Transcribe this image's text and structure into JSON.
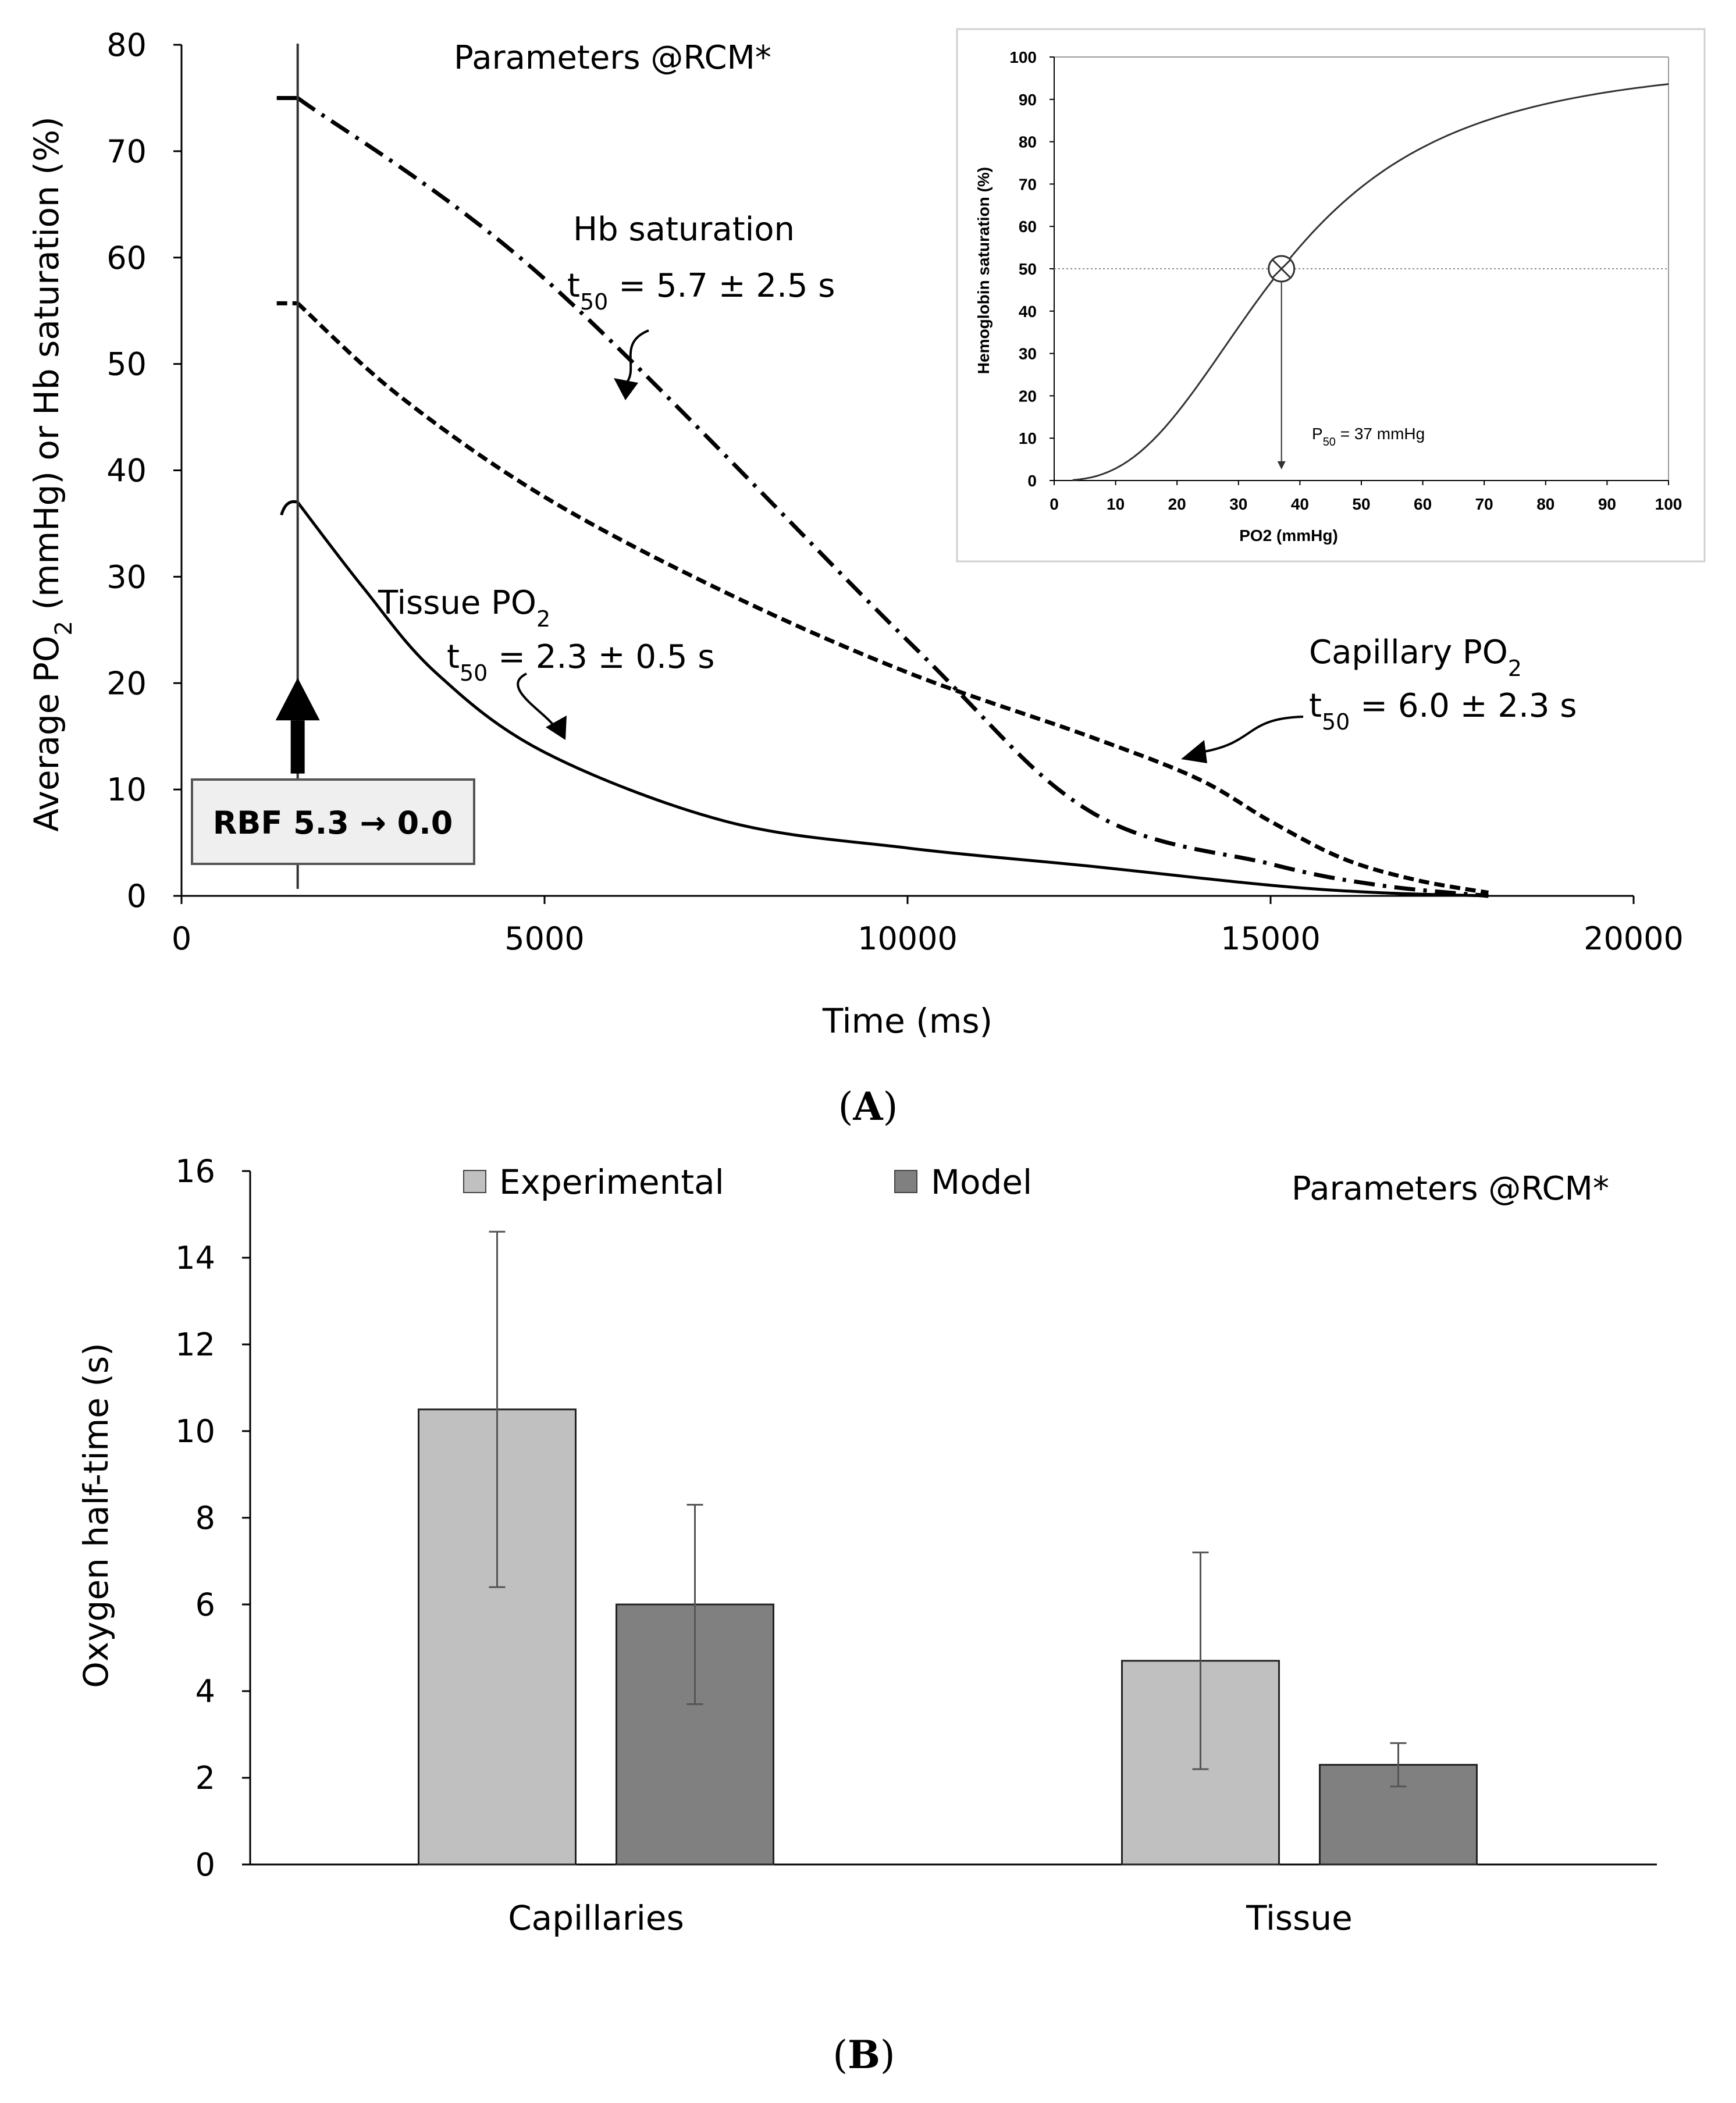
{
  "chart_data": [
    {
      "type": "line",
      "panel_label": "A",
      "annotation_top": "Parameters @RCM*",
      "xlabel": "Time (ms)",
      "ylabel_parts": [
        "Average PO",
        "2",
        " (mmHg)  or  Hb saturation (%)"
      ],
      "xlim": [
        0,
        20000
      ],
      "ylim": [
        0,
        80
      ],
      "xticks": [
        0,
        5000,
        10000,
        15000,
        20000
      ],
      "yticks": [
        0,
        10,
        20,
        30,
        40,
        50,
        60,
        70,
        80
      ],
      "event_time": 1600,
      "event_box": "RBF 5.3 → 0.0",
      "series": [
        {
          "name": "Hb saturation",
          "style": "dash-dot",
          "t50_label": [
            "t",
            "50",
            " = 5.7 ± 2.5 s"
          ],
          "points": [
            [
              1600,
              75
            ],
            [
              5000,
              58
            ],
            [
              10000,
              24
            ],
            [
              12500,
              8
            ],
            [
              15000,
              3
            ],
            [
              16500,
              1
            ],
            [
              18000,
              0
            ]
          ]
        },
        {
          "name": "Capillary  PO",
          "name_sub": "2",
          "style": "dashed",
          "t50_label": [
            "t",
            "50",
            " = 6.0 ± 2.3 s"
          ],
          "points": [
            [
              1600,
              55.7
            ],
            [
              3000,
              47
            ],
            [
              5000,
              37.5
            ],
            [
              7500,
              28.5
            ],
            [
              10000,
              21
            ],
            [
              12500,
              15
            ],
            [
              14000,
              11
            ],
            [
              15000,
              7
            ],
            [
              16000,
              3.5
            ],
            [
              17000,
              1.5
            ],
            [
              18000,
              0.3
            ]
          ]
        },
        {
          "name": "Tissue PO",
          "name_sub": "2",
          "style": "solid",
          "t50_label": [
            "t",
            "50",
            " = 2.3 ± 0.5 s"
          ],
          "points": [
            [
              1600,
              37
            ],
            [
              2500,
              29
            ],
            [
              3500,
              21
            ],
            [
              5000,
              13.5
            ],
            [
              7500,
              7
            ],
            [
              10000,
              4.5
            ],
            [
              12500,
              2.8
            ],
            [
              15000,
              1
            ],
            [
              16500,
              0.3
            ],
            [
              18000,
              0
            ]
          ]
        }
      ],
      "inset": {
        "xlabel": "PO2 (mmHg)",
        "ylabel": "Hemoglobin saturation (%)",
        "xlim": [
          0,
          100
        ],
        "ylim": [
          0,
          100
        ],
        "xticks": [
          0,
          10,
          20,
          30,
          40,
          50,
          60,
          70,
          80,
          90,
          100
        ],
        "yticks": [
          0,
          10,
          20,
          30,
          40,
          50,
          60,
          70,
          80,
          90,
          100
        ],
        "p50": 37,
        "p50_label": [
          "P",
          "50",
          " = 37 mmHg"
        ],
        "hill_n": 2.7
      }
    },
    {
      "type": "bar",
      "panel_label": "B",
      "annotation_top": "Parameters @RCM*",
      "ylabel": "Oxygen half-time (s)",
      "xlabel": "",
      "categories": [
        "Capillaries",
        "Tissue"
      ],
      "ylim": [
        0,
        16
      ],
      "yticks": [
        0,
        2,
        4,
        6,
        8,
        10,
        12,
        14,
        16
      ],
      "series": [
        {
          "name": "Experimental",
          "color": "#c0c0c0",
          "values": [
            10.5,
            4.7
          ],
          "errors": [
            4.1,
            2.5
          ]
        },
        {
          "name": "Model",
          "color": "#808080",
          "values": [
            6.0,
            2.3
          ],
          "errors": [
            2.3,
            0.5
          ]
        }
      ]
    }
  ]
}
